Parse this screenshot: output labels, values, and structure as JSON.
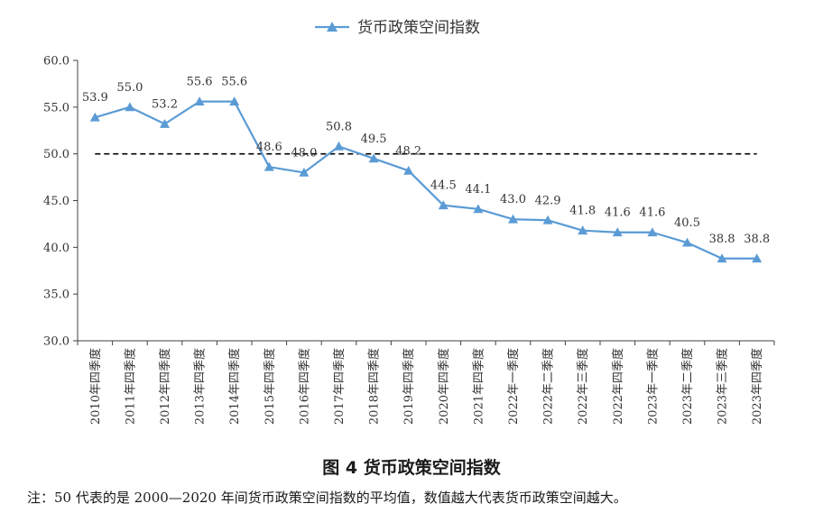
{
  "chart_data": {
    "type": "line",
    "categories": [
      "2010年四季度",
      "2011年四季度",
      "2012年四季度",
      "2013年四季度",
      "2014年四季度",
      "2015年四季度",
      "2016年四季度",
      "2017年四季度",
      "2018年四季度",
      "2019年四季度",
      "2020年四季度",
      "2021年四季度",
      "2022年一季度",
      "2022年二季度",
      "2022年三季度",
      "2022年四季度",
      "2023年一季度",
      "2023年二季度",
      "2023年三季度",
      "2023年四季度"
    ],
    "series": [
      {
        "name": "货币政策空间指数",
        "values": [
          53.9,
          55.0,
          53.2,
          55.6,
          55.6,
          48.6,
          48.0,
          50.8,
          49.5,
          48.2,
          44.5,
          44.1,
          43.0,
          42.9,
          41.8,
          41.6,
          41.6,
          40.5,
          38.8,
          38.8
        ],
        "color": "#5b9bd5"
      }
    ],
    "data_labels": [
      "53.9",
      "55.0",
      "53.2",
      "55.6",
      "55.6",
      "48.6",
      "48.0",
      "50.8",
      "49.5",
      "48.2",
      "44.5",
      "44.1",
      "43.0",
      "42.9",
      "41.8",
      "41.6",
      "41.6",
      "40.5",
      "38.8",
      "38.8"
    ],
    "ylim": [
      30,
      60
    ],
    "yticks": [
      "30.0",
      "35.0",
      "40.0",
      "45.0",
      "50.0",
      "55.0",
      "60.0"
    ],
    "reference_line": {
      "y": 50,
      "style": "dashed",
      "color": "#000000"
    },
    "legend_position": "top-center",
    "grid": false
  },
  "caption": "图 4  货币政策空间指数",
  "note": "注：50 代表的是 2000—2020 年间货币政策空间指数的平均值，数值越大代表货币政策空间越大。"
}
